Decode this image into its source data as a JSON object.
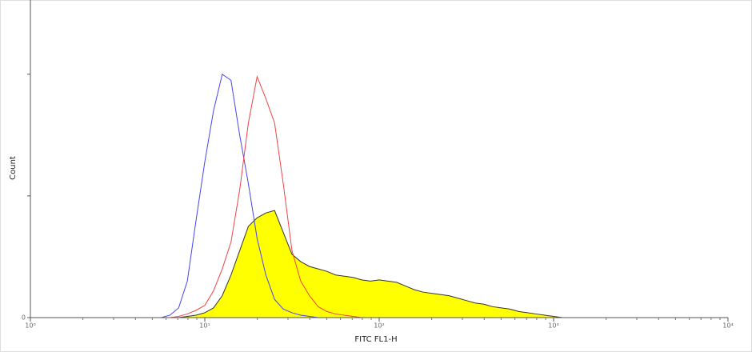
{
  "chart_data": {
    "type": "histogram-overlay",
    "x_label": "FITC FL1-H",
    "y_label": "Count",
    "log_x": true,
    "xlim": [
      1,
      10000
    ],
    "xticks": [
      {
        "value": 1,
        "label": "10⁰"
      },
      {
        "value": 10,
        "label": "10¹"
      },
      {
        "value": 100,
        "label": "10²"
      },
      {
        "value": 1000,
        "label": "10³"
      },
      {
        "value": 10000,
        "label": "10⁴"
      }
    ],
    "ylim": [
      0,
      261
    ],
    "yticks": [
      0,
      {
        "value": 100,
        "label": null
      },
      {
        "value": 200,
        "label": null
      }
    ],
    "x": [
      5.62,
      6.31,
      7.08,
      7.94,
      8.91,
      10,
      11.22,
      12.59,
      14.13,
      15.85,
      17.78,
      19.95,
      22.39,
      25.12,
      28.18,
      31.62,
      35.48,
      39.81,
      44.67,
      50.12,
      56.23,
      63.1,
      70.79,
      79.43,
      89.13,
      100,
      112.2,
      125.9,
      141.3,
      158.5,
      177.8,
      199.5,
      223.9,
      251.2,
      281.8,
      316.2,
      354.8,
      398.1,
      446.7,
      501.2,
      562.3,
      631,
      707.9,
      794.3,
      891.3,
      1000,
      1122
    ],
    "series": [
      {
        "color": "#ffff00",
        "edge": "#333333",
        "filled": true,
        "values": [
          0,
          0,
          0,
          1,
          2,
          4,
          8,
          18,
          35,
          55,
          75,
          82,
          86,
          88,
          70,
          52,
          46,
          42,
          40,
          38,
          35,
          34,
          33,
          31,
          30,
          31,
          30,
          29,
          26,
          23,
          21,
          20,
          19,
          18,
          16,
          14,
          12,
          11,
          9,
          8,
          7,
          5,
          4,
          3,
          2,
          1,
          0
        ]
      },
      {
        "color": "#4444ee",
        "filled": false,
        "values": [
          0,
          2,
          8,
          30,
          80,
          128,
          170,
          200,
          195,
          150,
          110,
          65,
          35,
          15,
          7,
          4,
          2,
          1,
          0,
          0,
          0,
          0,
          0,
          0,
          0,
          0,
          0,
          0,
          0,
          0,
          0,
          0,
          0,
          0,
          0,
          0,
          0,
          0,
          0,
          0,
          0,
          0,
          0,
          0,
          0,
          0,
          0
        ]
      },
      {
        "color": "#ee4444",
        "filled": false,
        "values": [
          0,
          0,
          1,
          3,
          6,
          10,
          22,
          40,
          62,
          105,
          160,
          198,
          180,
          160,
          110,
          55,
          30,
          18,
          9,
          5,
          3,
          2,
          1,
          0,
          0,
          0,
          0,
          0,
          0,
          0,
          0,
          0,
          0,
          0,
          0,
          0,
          0,
          0,
          0,
          0,
          0,
          0,
          0,
          0,
          0,
          0,
          0
        ]
      }
    ]
  }
}
